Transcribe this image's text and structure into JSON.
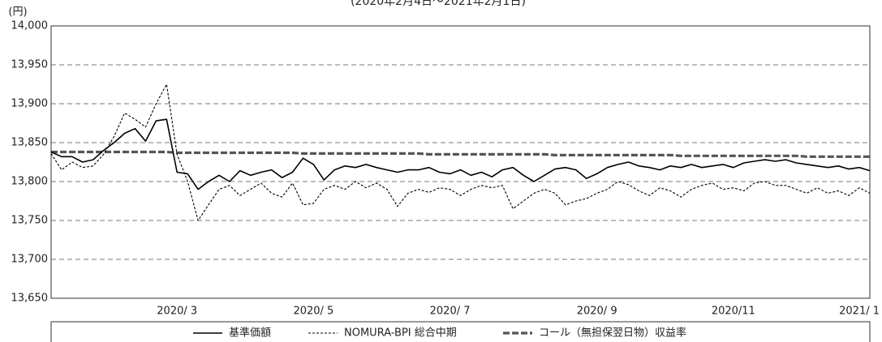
{
  "chart_data": {
    "type": "line",
    "subtitle": "(2020年2月4日～2021年2月1日)",
    "ylabel": "(円)",
    "categories": [
      null,
      null,
      null,
      null,
      null,
      null,
      null,
      null,
      null,
      null,
      null,
      null,
      "2020/ 3",
      null,
      null,
      null,
      null,
      null,
      null,
      null,
      null,
      null,
      null,
      null,
      null,
      "2020/ 5",
      null,
      null,
      null,
      null,
      null,
      null,
      null,
      null,
      null,
      null,
      null,
      null,
      "2020/ 7",
      null,
      null,
      null,
      null,
      null,
      null,
      null,
      null,
      null,
      null,
      null,
      null,
      null,
      "2020/ 9",
      null,
      null,
      null,
      null,
      null,
      null,
      null,
      null,
      null,
      null,
      null,
      null,
      "2020/11",
      null,
      null,
      null,
      null,
      null,
      null,
      null,
      null,
      null,
      null,
      null,
      "2021/ 1",
      null
    ],
    "series": [
      {
        "name": "基準価額",
        "color": "#000000",
        "style": "solid",
        "values": [
          13838,
          13832,
          13832,
          13825,
          13828,
          13840,
          13850,
          13862,
          13868,
          13852,
          13878,
          13880,
          13812,
          13810,
          13790,
          13800,
          13808,
          13800,
          13814,
          13808,
          13812,
          13815,
          13805,
          13812,
          13830,
          13822,
          13802,
          13815,
          13820,
          13818,
          13822,
          13818,
          13815,
          13812,
          13815,
          13815,
          13818,
          13812,
          13810,
          13815,
          13808,
          13812,
          13806,
          13815,
          13818,
          13808,
          13800,
          13808,
          13816,
          13818,
          13815,
          13804,
          13810,
          13818,
          13822,
          13825,
          13820,
          13818,
          13815,
          13820,
          13818,
          13822,
          13818,
          13820,
          13822,
          13818,
          13824,
          13826,
          13828,
          13826,
          13828,
          13824,
          13822,
          13820,
          13818,
          13820,
          13816,
          13818,
          13814
        ]
      },
      {
        "name": "NOMURA-BPI 総合中期",
        "color": "#000000",
        "style": "dashed",
        "values": [
          13836,
          13815,
          13825,
          13818,
          13820,
          13835,
          13858,
          13888,
          13880,
          13870,
          13900,
          13925,
          13835,
          13800,
          13750,
          13770,
          13790,
          13795,
          13782,
          13790,
          13798,
          13785,
          13780,
          13798,
          13770,
          13772,
          13790,
          13795,
          13790,
          13800,
          13792,
          13798,
          13790,
          13768,
          13785,
          13790,
          13786,
          13792,
          13790,
          13782,
          13790,
          13795,
          13792,
          13795,
          13765,
          13775,
          13785,
          13790,
          13785,
          13770,
          13775,
          13778,
          13785,
          13790,
          13800,
          13796,
          13788,
          13782,
          13792,
          13788,
          13780,
          13790,
          13795,
          13798,
          13790,
          13792,
          13788,
          13798,
          13800,
          13795,
          13795,
          13790,
          13785,
          13792,
          13785,
          13788,
          13782,
          13792,
          13785
        ]
      },
      {
        "name": "コール（無担保翌日物）収益率",
        "color": "#555555",
        "style": "thick-dashed",
        "values": [
          13838,
          13838,
          13838,
          13838,
          13838,
          13838,
          13838,
          13838,
          13838,
          13838,
          13838,
          13838,
          13837,
          13837,
          13837,
          13837,
          13837,
          13837,
          13837,
          13837,
          13837,
          13837,
          13837,
          13837,
          13836,
          13836,
          13836,
          13836,
          13836,
          13836,
          13836,
          13836,
          13836,
          13836,
          13836,
          13836,
          13835,
          13835,
          13835,
          13835,
          13835,
          13835,
          13835,
          13835,
          13835,
          13835,
          13835,
          13835,
          13834,
          13834,
          13834,
          13834,
          13834,
          13834,
          13834,
          13834,
          13834,
          13834,
          13834,
          13834,
          13833,
          13833,
          13833,
          13833,
          13833,
          13833,
          13833,
          13833,
          13833,
          13833,
          13833,
          13833,
          13832,
          13832,
          13832,
          13832,
          13832,
          13832,
          13832
        ]
      }
    ],
    "ylim": [
      13650,
      14000
    ],
    "yticks": [
      {
        "value": 13650,
        "label": "13,650"
      },
      {
        "value": 13700,
        "label": "13,700"
      },
      {
        "value": 13750,
        "label": "13,750"
      },
      {
        "value": 13800,
        "label": "13,800"
      },
      {
        "value": 13850,
        "label": "13,850"
      },
      {
        "value": 13900,
        "label": "13,900"
      },
      {
        "value": 13950,
        "label": "13,950"
      },
      {
        "value": 14000,
        "label": "14,000"
      }
    ],
    "grid": true,
    "legend": "bottom"
  }
}
